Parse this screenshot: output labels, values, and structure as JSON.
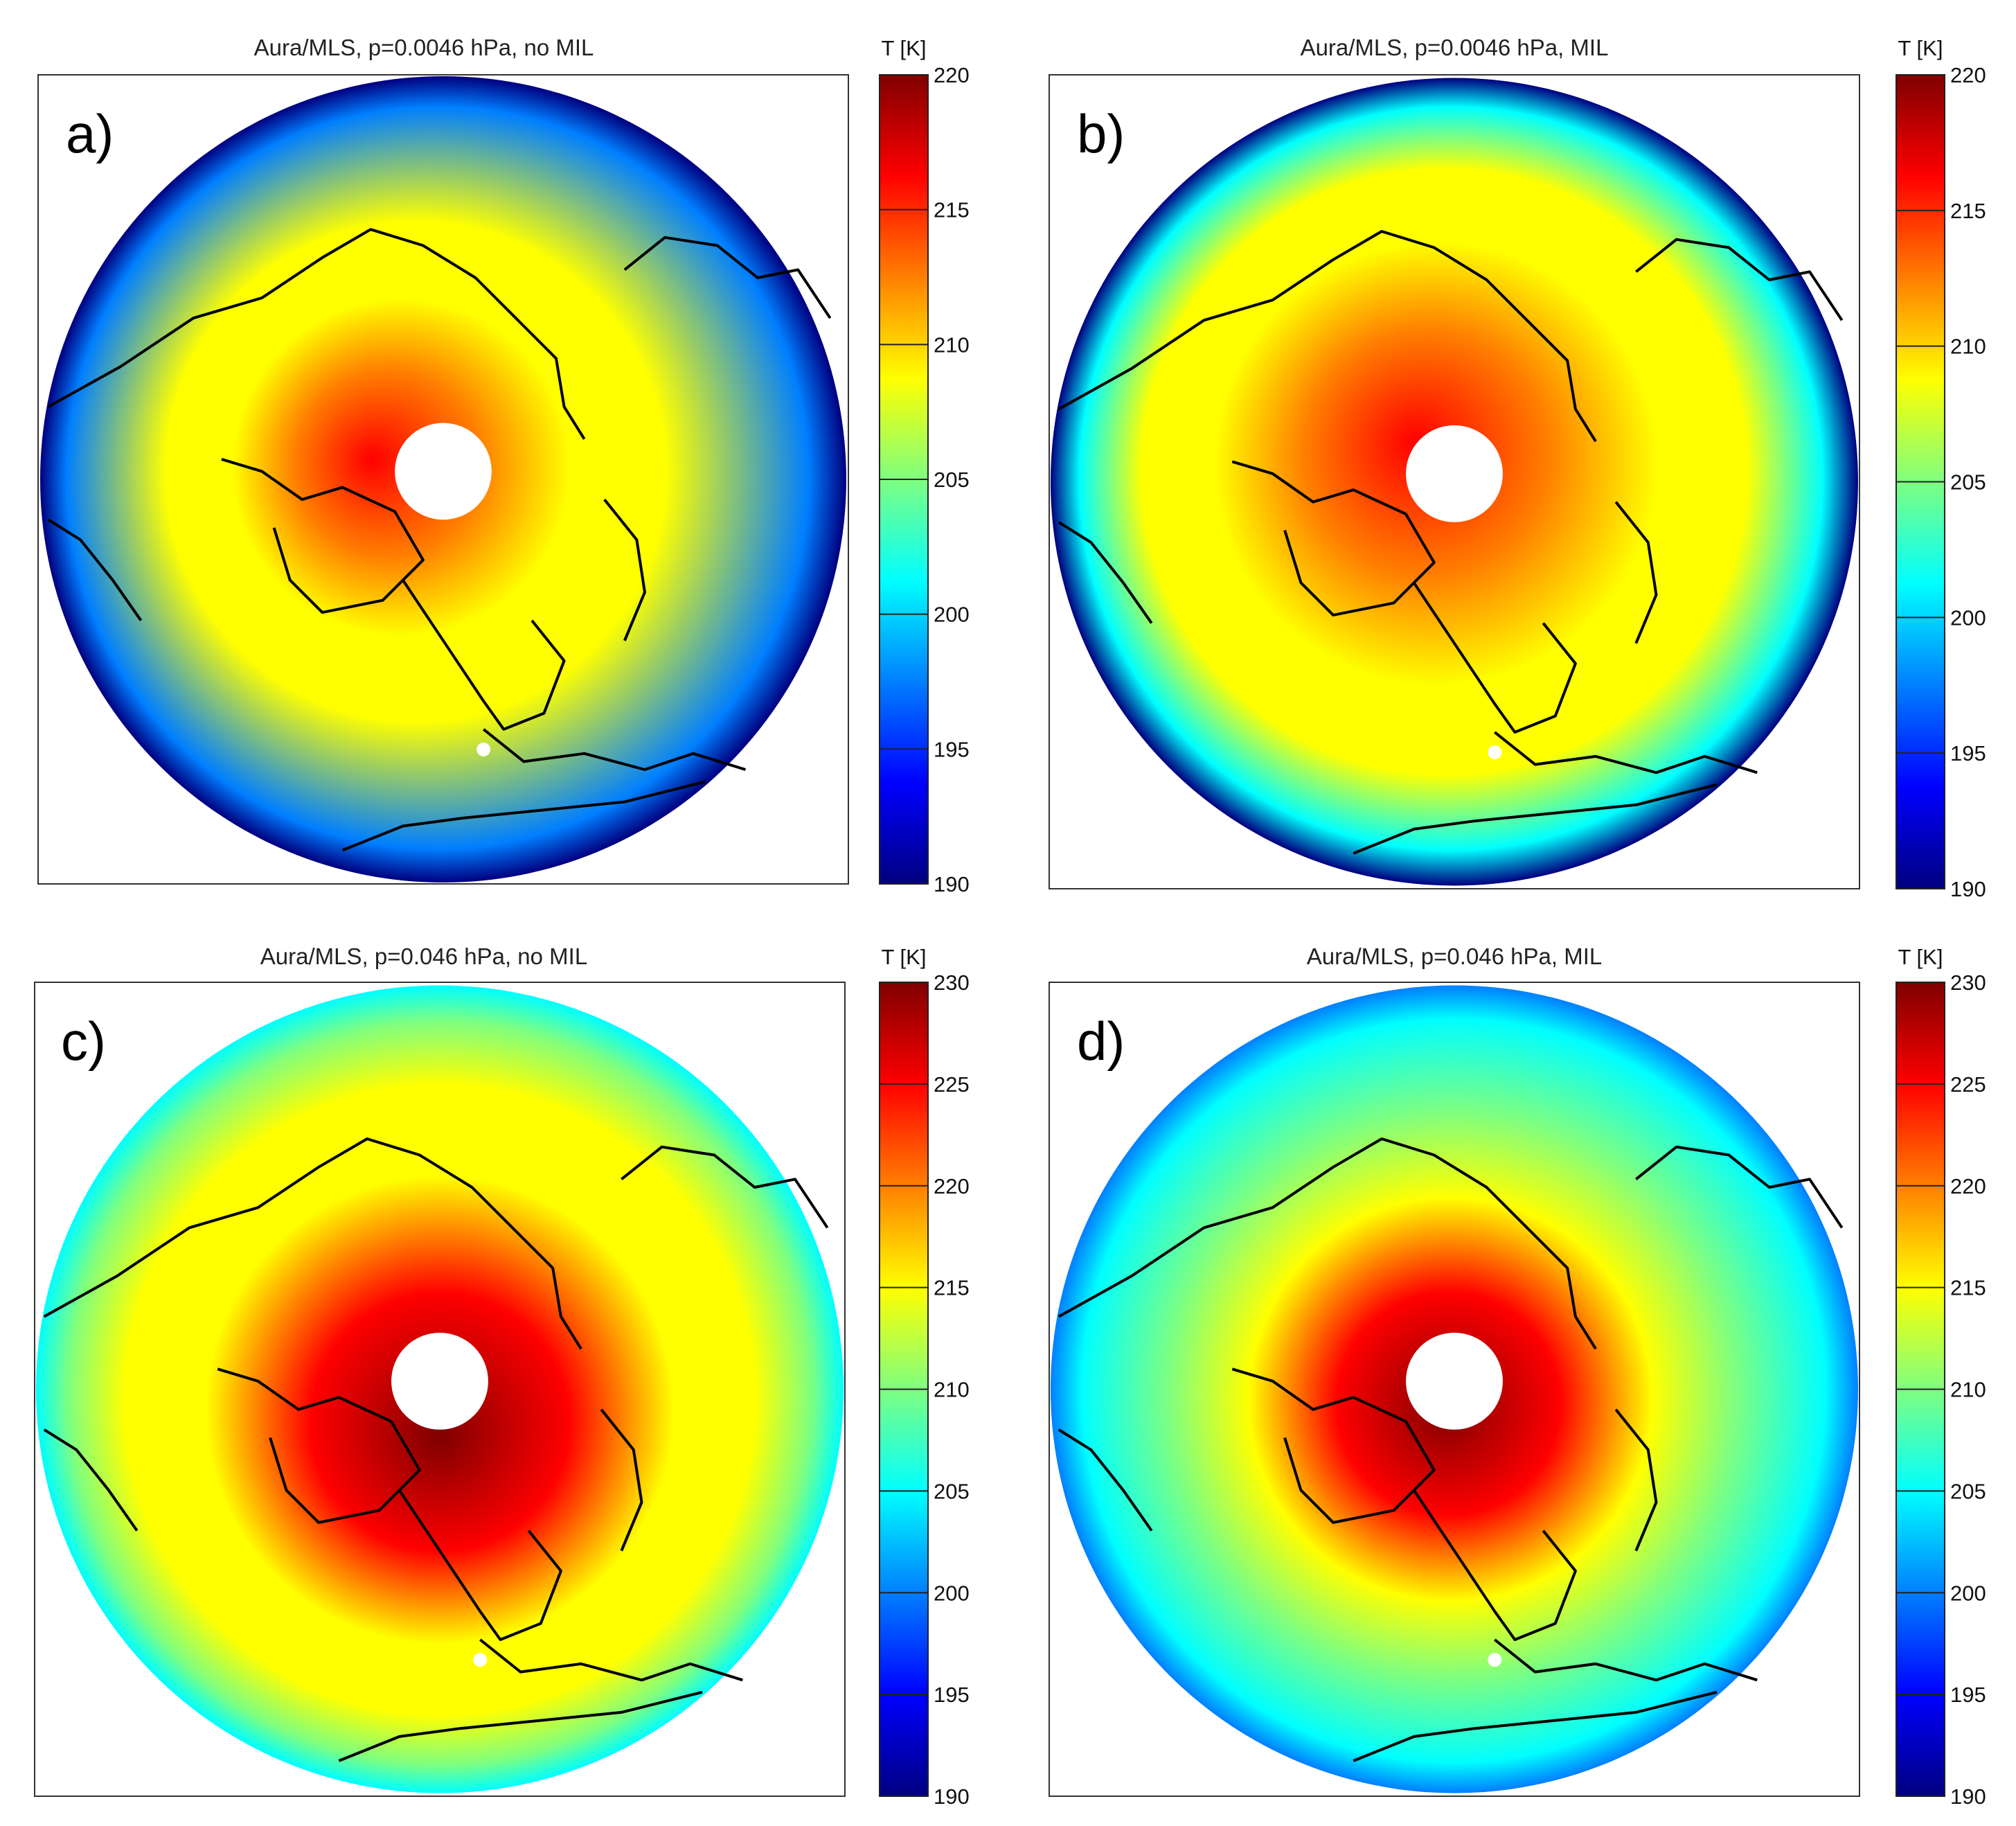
{
  "colormap": [
    "#00007f",
    "#0000ff",
    "#007fff",
    "#00ffff",
    "#7fff7f",
    "#ffff00",
    "#ff7f00",
    "#ff0000",
    "#7f0000"
  ],
  "chart_data": [
    {
      "type": "heatmap",
      "panel_label": "a)",
      "title": "Aura/MLS, p=0.0046 hPa, no MIL",
      "colorbar_title": "T [K]",
      "clim": [
        190,
        220
      ],
      "colorbar_ticks": [
        190,
        195,
        200,
        205,
        210,
        215,
        220
      ],
      "hot_center_value": 215.5,
      "mid_ring_value": 207,
      "edge_value": 191,
      "hot_offset": [
        -0.18,
        -0.05
      ],
      "hot_radius": 0.42
    },
    {
      "type": "heatmap",
      "panel_label": "b)",
      "title": "Aura/MLS, p=0.0046 hPa, MIL",
      "colorbar_title": "T [K]",
      "clim": [
        190,
        220
      ],
      "colorbar_ticks": [
        190,
        195,
        200,
        205,
        210,
        215,
        220
      ],
      "hot_center_value": 215,
      "mid_ring_value": 209,
      "edge_value": 191,
      "hot_offset": [
        -0.1,
        -0.1
      ],
      "hot_radius": 0.55
    },
    {
      "type": "heatmap",
      "panel_label": "c)",
      "title": "Aura/MLS, p=0.046 hPa, no MIL",
      "colorbar_title": "T [K]",
      "clim": [
        190,
        230
      ],
      "colorbar_ticks": [
        190,
        195,
        200,
        205,
        210,
        215,
        220,
        225,
        230
      ],
      "hot_center_value": 230,
      "mid_ring_value": 213,
      "edge_value": 207,
      "hot_offset": [
        0.0,
        0.12
      ],
      "hot_radius": 0.58
    },
    {
      "type": "heatmap",
      "panel_label": "d)",
      "title": "Aura/MLS, p=0.046 hPa, MIL",
      "colorbar_title": "T [K]",
      "clim": [
        190,
        230
      ],
      "colorbar_ticks": [
        190,
        195,
        200,
        205,
        210,
        215,
        220,
        225,
        230
      ],
      "hot_center_value": 230,
      "mid_ring_value": 212,
      "edge_value": 202,
      "hot_offset": [
        -0.02,
        0.05
      ],
      "hot_radius": 0.5
    }
  ]
}
